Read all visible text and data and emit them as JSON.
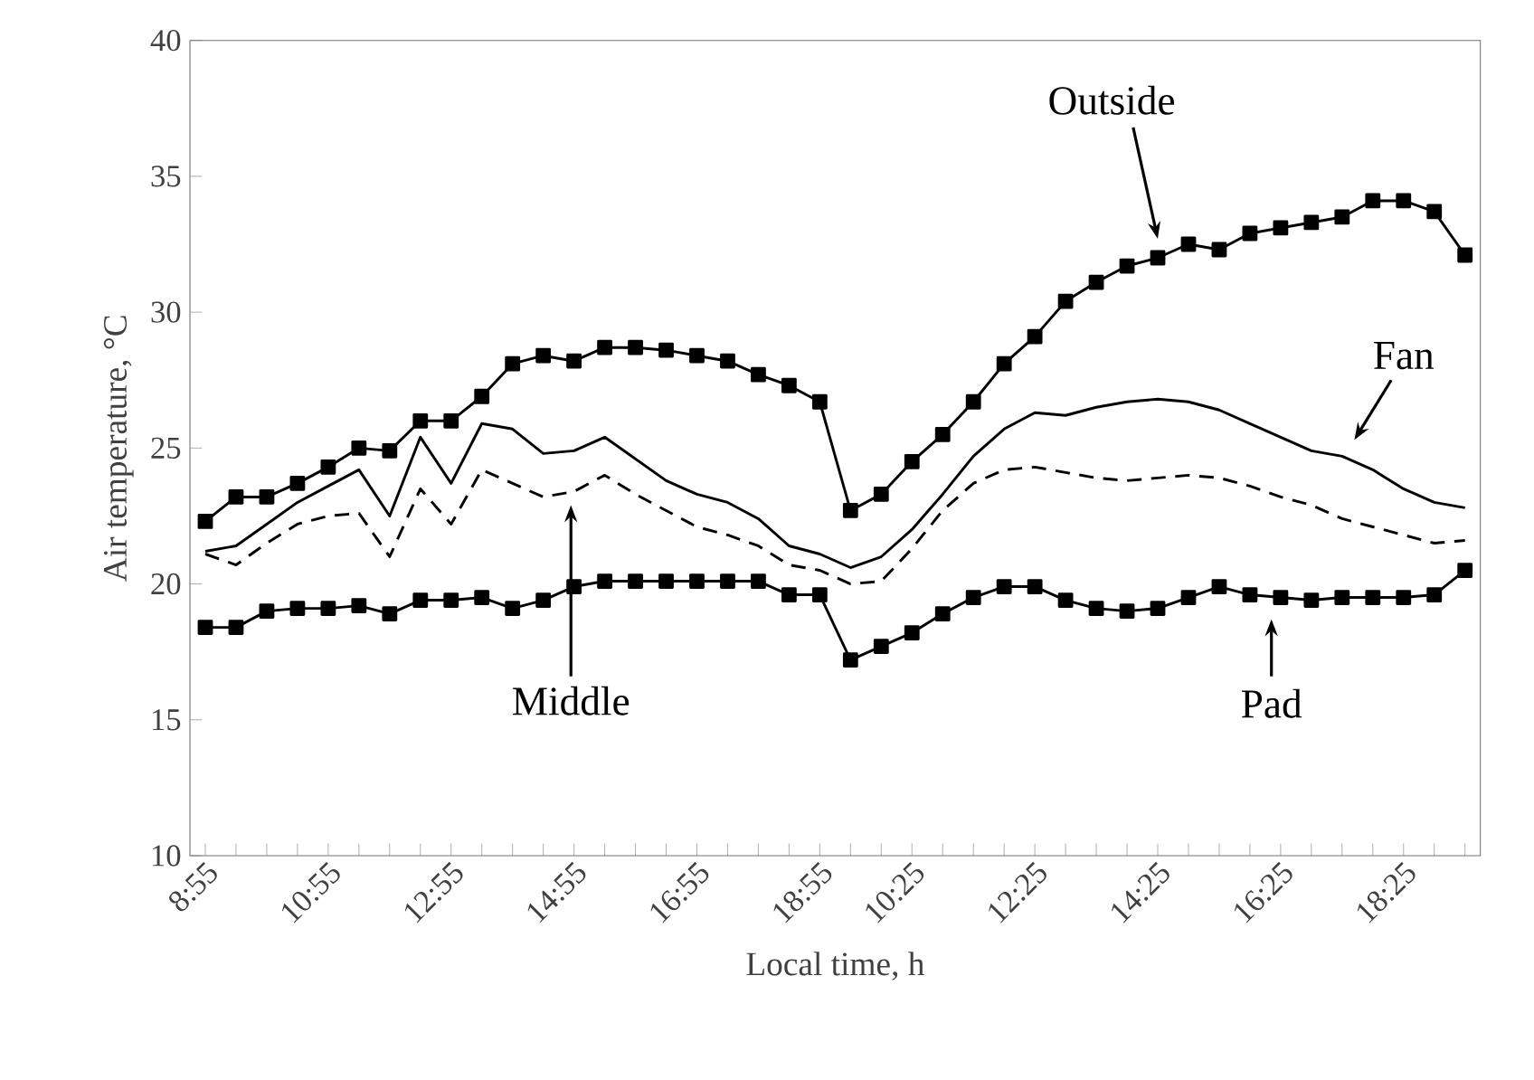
{
  "chart_data": {
    "type": "line",
    "xlabel": "Local time, h",
    "ylabel": "Air temperature, °C",
    "categories": [
      "8:55",
      null,
      null,
      null,
      "10:55",
      null,
      null,
      null,
      "12:55",
      null,
      null,
      null,
      "14:55",
      null,
      null,
      null,
      "16:55",
      null,
      null,
      null,
      "18:55",
      null,
      null,
      "10:25",
      null,
      null,
      null,
      "12:25",
      null,
      null,
      null,
      "14:25",
      null,
      null,
      null,
      "16:25",
      null,
      null,
      null,
      "18:25",
      null,
      null
    ],
    "ylim": [
      10,
      40
    ],
    "yticks": [
      10,
      15,
      20,
      25,
      30,
      35,
      40
    ],
    "series": [
      {
        "name": "Outside",
        "color": "#000000",
        "marker": "square",
        "line_style": "solid",
        "values": [
          22.3,
          23.2,
          23.2,
          23.7,
          24.3,
          25.0,
          24.9,
          26.0,
          26.0,
          26.9,
          28.1,
          28.4,
          28.2,
          28.7,
          28.7,
          28.6,
          28.4,
          28.2,
          27.7,
          27.3,
          26.7,
          22.7,
          23.3,
          24.5,
          25.5,
          26.7,
          28.1,
          29.1,
          30.4,
          31.1,
          31.7,
          32.0,
          32.5,
          32.3,
          32.9,
          33.1,
          33.3,
          33.5,
          34.1,
          34.1,
          33.7,
          32.1
        ]
      },
      {
        "name": "Fan",
        "color": "#000000",
        "marker": "none",
        "line_style": "solid",
        "values": [
          21.2,
          21.4,
          22.2,
          23.0,
          23.6,
          24.2,
          22.5,
          25.4,
          23.7,
          25.9,
          25.7,
          24.8,
          24.9,
          25.4,
          24.6,
          23.8,
          23.3,
          23.0,
          22.4,
          21.4,
          21.1,
          20.6,
          21.0,
          22.0,
          23.3,
          24.7,
          25.7,
          26.3,
          26.2,
          26.5,
          26.7,
          26.8,
          26.7,
          26.4,
          25.9,
          25.4,
          24.9,
          24.7,
          24.2,
          23.5,
          23.0,
          22.8
        ]
      },
      {
        "name": "Middle",
        "color": "#000000",
        "marker": "none",
        "line_style": "dashed",
        "values": [
          21.1,
          20.7,
          21.5,
          22.2,
          22.5,
          22.6,
          21.0,
          23.5,
          22.2,
          24.2,
          23.7,
          23.2,
          23.4,
          24.0,
          23.3,
          22.7,
          22.1,
          21.8,
          21.4,
          20.7,
          20.5,
          20.0,
          20.1,
          21.3,
          22.7,
          23.7,
          24.2,
          24.3,
          24.1,
          23.9,
          23.8,
          23.9,
          24.0,
          23.9,
          23.6,
          23.2,
          22.9,
          22.4,
          22.1,
          21.8,
          21.5,
          21.6
        ]
      },
      {
        "name": "Pad",
        "color": "#000000",
        "marker": "square",
        "line_style": "solid",
        "values": [
          18.4,
          18.4,
          19.0,
          19.1,
          19.1,
          19.2,
          18.9,
          19.4,
          19.4,
          19.5,
          19.1,
          19.4,
          19.9,
          20.1,
          20.1,
          20.1,
          20.1,
          20.1,
          20.1,
          19.6,
          19.6,
          17.2,
          17.7,
          18.2,
          18.9,
          19.5,
          19.9,
          19.9,
          19.4,
          19.1,
          19.0,
          19.1,
          19.5,
          19.9,
          19.6,
          19.5,
          19.4,
          19.5,
          19.5,
          19.5,
          19.6,
          20.5
        ]
      }
    ]
  }
}
